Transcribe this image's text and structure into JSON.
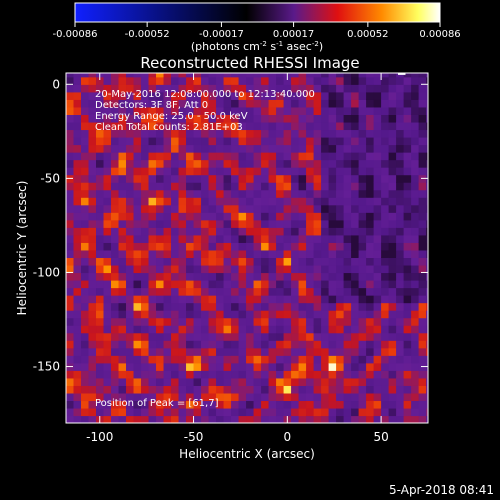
{
  "chart_data": {
    "type": "heatmap",
    "title": "Reconstructed RHESSI Image",
    "xlabel": "Heliocentric X (arcsec)",
    "ylabel": "Heliocentric Y (arcsec)",
    "xlim": [
      -118,
      75
    ],
    "ylim": [
      -180,
      6
    ],
    "x_ticks": [
      -100,
      -50,
      0,
      50
    ],
    "y_ticks": [
      0,
      -50,
      -100,
      -150
    ],
    "colorbar": {
      "range": [
        -0.00086,
        0.00086
      ],
      "tick_values": [
        -0.00086,
        -0.00052,
        -0.00017,
        0.00017,
        0.00052,
        0.00086
      ],
      "tick_labels": [
        "-0.00086",
        "-0.00052",
        "-0.00017",
        "0.00017",
        "0.00052",
        "0.00086"
      ],
      "units_main": "(photons cm",
      "units_exp1": "-2",
      "units_mid": " s",
      "units_exp2": "-1",
      "units_mid2": " asec",
      "units_exp3": "-2",
      "units_end": ")",
      "colors": [
        "#1020ff",
        "#000000",
        "#5a1a8a",
        "#e01010",
        "#ff8a00",
        "#ffff60",
        "#ffffff"
      ]
    },
    "annotations": [
      "20-May-2016 12:08:00.000 to 12:13:40.000",
      "Detectors: 3F 8F, Att 0",
      "Energy Range: 25.0 - 50.0 keV",
      "Clean     Total counts: 2.81E+03"
    ],
    "peak_label": "Position of Peak = [61,7]",
    "peak_position": [
      61,
      7
    ],
    "pixel_size_arcsec": 4
  },
  "footer": {
    "date": "5-Apr-2018 08:41"
  }
}
